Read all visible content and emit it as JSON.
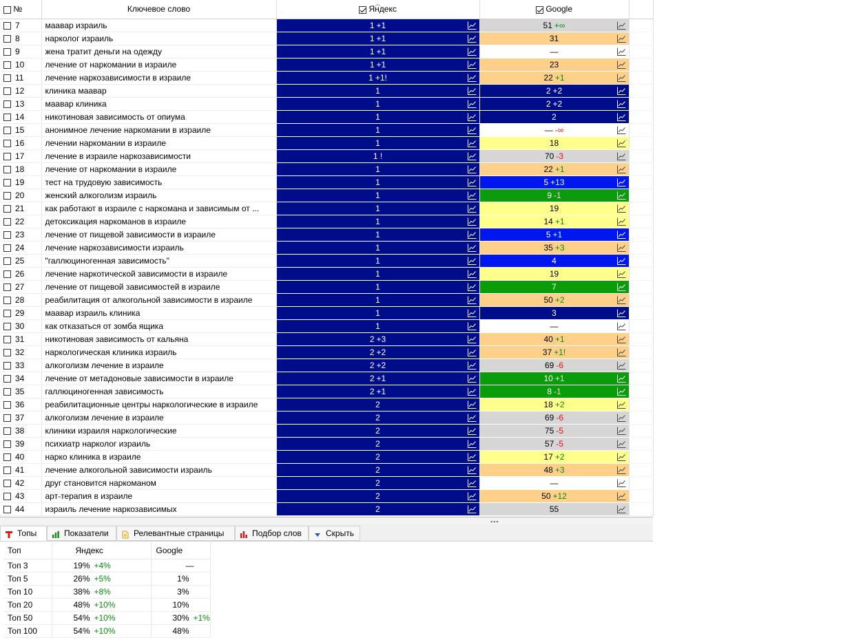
{
  "header": {
    "num_label": "№",
    "keyword_label": "Ключевое слово",
    "yandex_label": "Яндекс",
    "google_label": "Google"
  },
  "colors": {
    "navy": "#000d8a",
    "blue": "#0016ee",
    "green": "#0b9c0b",
    "gray": "#d6d6d6",
    "orange": "#ffd08a",
    "yellow": "#ffff8c",
    "white": "#ffffff"
  },
  "rows": [
    {
      "num": "7",
      "keyword": "маавар израиль",
      "y_val": "1",
      "y_delta": "+1",
      "y_delta_kind": "up",
      "y_color": "navy",
      "g_val": "51",
      "g_delta": "+∞",
      "g_delta_kind": "up",
      "g_color": "gray"
    },
    {
      "num": "8",
      "keyword": "нарколог израиль",
      "y_val": "1",
      "y_delta": "+1",
      "y_delta_kind": "up",
      "y_color": "navy",
      "g_val": "31",
      "g_delta": "",
      "g_delta_kind": "",
      "g_color": "orange"
    },
    {
      "num": "9",
      "keyword": "жена тратит деньги на одежду",
      "y_val": "1",
      "y_delta": "+1",
      "y_delta_kind": "up",
      "y_color": "navy",
      "g_val": "—",
      "g_delta": "",
      "g_delta_kind": "",
      "g_color": "white"
    },
    {
      "num": "10",
      "keyword": "лечение от наркомании в израиле",
      "y_val": "1",
      "y_delta": "+1",
      "y_delta_kind": "up",
      "y_color": "navy",
      "g_val": "23",
      "g_delta": "",
      "g_delta_kind": "",
      "g_color": "orange"
    },
    {
      "num": "11",
      "keyword": "лечение наркозависимости в израиле",
      "y_val": "1",
      "y_delta": "+1!",
      "y_delta_kind": "up",
      "y_color": "navy",
      "g_val": "22",
      "g_delta": "+1",
      "g_delta_kind": "up",
      "g_color": "orange"
    },
    {
      "num": "12",
      "keyword": "клиника маавар",
      "y_val": "1",
      "y_delta": "",
      "y_delta_kind": "",
      "y_color": "navy",
      "g_val": "2",
      "g_delta": "+2",
      "g_delta_kind": "up",
      "g_color": "navy"
    },
    {
      "num": "13",
      "keyword": "маавар клиника",
      "y_val": "1",
      "y_delta": "",
      "y_delta_kind": "",
      "y_color": "navy",
      "g_val": "2",
      "g_delta": "+2",
      "g_delta_kind": "up",
      "g_color": "navy"
    },
    {
      "num": "14",
      "keyword": "никотиновая зависимость от опиума",
      "y_val": "1",
      "y_delta": "",
      "y_delta_kind": "",
      "y_color": "navy",
      "g_val": "2",
      "g_delta": "",
      "g_delta_kind": "",
      "g_color": "navy"
    },
    {
      "num": "15",
      "keyword": "анонимное лечение наркомании в израиле",
      "y_val": "1",
      "y_delta": "",
      "y_delta_kind": "",
      "y_color": "navy",
      "g_val": "—",
      "g_delta": "-∞",
      "g_delta_kind": "down",
      "g_color": "white"
    },
    {
      "num": "16",
      "keyword": "лечении наркомании в израиле",
      "y_val": "1",
      "y_delta": "",
      "y_delta_kind": "",
      "y_color": "navy",
      "g_val": "18",
      "g_delta": "",
      "g_delta_kind": "",
      "g_color": "yellow"
    },
    {
      "num": "17",
      "keyword": "лечение в израиле наркозависимости",
      "y_val": "1 !",
      "y_delta": "",
      "y_delta_kind": "",
      "y_color": "navy",
      "g_val": "70",
      "g_delta": "-3",
      "g_delta_kind": "down",
      "g_color": "gray"
    },
    {
      "num": "18",
      "keyword": "лечение от наркомании в израиле",
      "y_val": "1",
      "y_delta": "",
      "y_delta_kind": "",
      "y_color": "navy",
      "g_val": "22",
      "g_delta": "+1",
      "g_delta_kind": "up",
      "g_color": "orange"
    },
    {
      "num": "19",
      "keyword": "тест на трудовую зависимость",
      "y_val": "1",
      "y_delta": "",
      "y_delta_kind": "",
      "y_color": "navy",
      "g_val": "5",
      "g_delta": "+13",
      "g_delta_kind": "up",
      "g_color": "blue"
    },
    {
      "num": "20",
      "keyword": "женский алкоголизм израиль",
      "y_val": "1",
      "y_delta": "",
      "y_delta_kind": "",
      "y_color": "navy",
      "g_val": "9",
      "g_delta": "-1",
      "g_delta_kind": "down",
      "g_color": "green"
    },
    {
      "num": "21",
      "keyword": "как работают в израиле с наркомана и зависимым от ...",
      "y_val": "1",
      "y_delta": "",
      "y_delta_kind": "",
      "y_color": "navy",
      "g_val": "19",
      "g_delta": "",
      "g_delta_kind": "",
      "g_color": "yellow"
    },
    {
      "num": "22",
      "keyword": "детоксикация наркоманов в израиле",
      "y_val": "1",
      "y_delta": "",
      "y_delta_kind": "",
      "y_color": "navy",
      "g_val": "14",
      "g_delta": "+1",
      "g_delta_kind": "up",
      "g_color": "yellow"
    },
    {
      "num": "23",
      "keyword": "лечение от пищевой зависимости в израиле",
      "y_val": "1",
      "y_delta": "",
      "y_delta_kind": "",
      "y_color": "navy",
      "g_val": "5",
      "g_delta": "+1",
      "g_delta_kind": "up",
      "g_color": "blue"
    },
    {
      "num": "24",
      "keyword": "лечение наркозависимости израиль",
      "y_val": "1",
      "y_delta": "",
      "y_delta_kind": "",
      "y_color": "navy",
      "g_val": "35",
      "g_delta": "+3",
      "g_delta_kind": "up",
      "g_color": "orange"
    },
    {
      "num": "25",
      "keyword": "\"галлюциногенная зависимость\"",
      "y_val": "1",
      "y_delta": "",
      "y_delta_kind": "",
      "y_color": "navy",
      "g_val": "4",
      "g_delta": "",
      "g_delta_kind": "",
      "g_color": "blue"
    },
    {
      "num": "26",
      "keyword": "лечение наркотической зависимости в израиле",
      "y_val": "1",
      "y_delta": "",
      "y_delta_kind": "",
      "y_color": "navy",
      "g_val": "19",
      "g_delta": "",
      "g_delta_kind": "",
      "g_color": "yellow"
    },
    {
      "num": "27",
      "keyword": "лечение от пищевой зависимостей в израиле",
      "y_val": "1",
      "y_delta": "",
      "y_delta_kind": "",
      "y_color": "navy",
      "g_val": "7",
      "g_delta": "",
      "g_delta_kind": "",
      "g_color": "green"
    },
    {
      "num": "28",
      "keyword": "реабилитация от алкогольной зависимости в израиле",
      "y_val": "1",
      "y_delta": "",
      "y_delta_kind": "",
      "y_color": "navy",
      "g_val": "50",
      "g_delta": "+2",
      "g_delta_kind": "up",
      "g_color": "orange"
    },
    {
      "num": "29",
      "keyword": "маавар израиль клиника",
      "y_val": "1",
      "y_delta": "",
      "y_delta_kind": "",
      "y_color": "navy",
      "g_val": "3",
      "g_delta": "",
      "g_delta_kind": "",
      "g_color": "navy"
    },
    {
      "num": "30",
      "keyword": "как отказаться от зомба ящика",
      "y_val": "1",
      "y_delta": "",
      "y_delta_kind": "",
      "y_color": "navy",
      "g_val": "—",
      "g_delta": "",
      "g_delta_kind": "",
      "g_color": "white"
    },
    {
      "num": "31",
      "keyword": "никотиновая зависимость от кальяна",
      "y_val": "2",
      "y_delta": "+3",
      "y_delta_kind": "up",
      "y_color": "navy",
      "g_val": "40",
      "g_delta": "+1",
      "g_delta_kind": "up",
      "g_color": "orange"
    },
    {
      "num": "32",
      "keyword": "наркологическая клиника израиль",
      "y_val": "2",
      "y_delta": "+2",
      "y_delta_kind": "up",
      "y_color": "navy",
      "g_val": "37",
      "g_delta": "+1!",
      "g_delta_kind": "up",
      "g_color": "orange"
    },
    {
      "num": "33",
      "keyword": "алкоголизм лечение в израиле",
      "y_val": "2",
      "y_delta": "+2",
      "y_delta_kind": "up",
      "y_color": "navy",
      "g_val": "69",
      "g_delta": "-6",
      "g_delta_kind": "down",
      "g_color": "gray"
    },
    {
      "num": "34",
      "keyword": "лечение от метадоновые зависимости в израиле",
      "y_val": "2",
      "y_delta": "+1",
      "y_delta_kind": "up",
      "y_color": "navy",
      "g_val": "10",
      "g_delta": "+1",
      "g_delta_kind": "up",
      "g_color": "green"
    },
    {
      "num": "35",
      "keyword": "галлюциногенная зависимость",
      "y_val": "2",
      "y_delta": "+1",
      "y_delta_kind": "up",
      "y_color": "navy",
      "g_val": "8",
      "g_delta": "-1",
      "g_delta_kind": "down",
      "g_color": "green"
    },
    {
      "num": "36",
      "keyword": "реабилитационные центры наркологические в израиле",
      "y_val": "2",
      "y_delta": "",
      "y_delta_kind": "",
      "y_color": "navy",
      "g_val": "18",
      "g_delta": "+2",
      "g_delta_kind": "up",
      "g_color": "yellow"
    },
    {
      "num": "37",
      "keyword": "алкоголизм лечение в израиле",
      "y_val": "2",
      "y_delta": "",
      "y_delta_kind": "",
      "y_color": "navy",
      "g_val": "69",
      "g_delta": "-6",
      "g_delta_kind": "down",
      "g_color": "gray"
    },
    {
      "num": "38",
      "keyword": "клиники израиля наркологические",
      "y_val": "2",
      "y_delta": "",
      "y_delta_kind": "",
      "y_color": "navy",
      "g_val": "75",
      "g_delta": "-5",
      "g_delta_kind": "down",
      "g_color": "gray"
    },
    {
      "num": "39",
      "keyword": "психиатр нарколог израиль",
      "y_val": "2",
      "y_delta": "",
      "y_delta_kind": "",
      "y_color": "navy",
      "g_val": "57",
      "g_delta": "-5",
      "g_delta_kind": "down",
      "g_color": "gray"
    },
    {
      "num": "40",
      "keyword": "нарко клиника в израиле",
      "y_val": "2",
      "y_delta": "",
      "y_delta_kind": "",
      "y_color": "navy",
      "g_val": "17",
      "g_delta": "+2",
      "g_delta_kind": "up",
      "g_color": "yellow"
    },
    {
      "num": "41",
      "keyword": "лечение алкогольной зависимости израиль",
      "y_val": "2",
      "y_delta": "",
      "y_delta_kind": "",
      "y_color": "navy",
      "g_val": "48",
      "g_delta": "+3",
      "g_delta_kind": "up",
      "g_color": "orange"
    },
    {
      "num": "42",
      "keyword": "друг становится наркоманом",
      "y_val": "2",
      "y_delta": "",
      "y_delta_kind": "",
      "y_color": "navy",
      "g_val": "—",
      "g_delta": "",
      "g_delta_kind": "",
      "g_color": "white"
    },
    {
      "num": "43",
      "keyword": "арт-терапия в израиле",
      "y_val": "2",
      "y_delta": "",
      "y_delta_kind": "",
      "y_color": "navy",
      "g_val": "50",
      "g_delta": "+12",
      "g_delta_kind": "up",
      "g_color": "orange"
    },
    {
      "num": "44",
      "keyword": "израиль лечение наркозависимых",
      "y_val": "2",
      "y_delta": "",
      "y_delta_kind": "",
      "y_color": "navy",
      "g_val": "55",
      "g_delta": "",
      "g_delta_kind": "",
      "g_color": "gray"
    }
  ],
  "tabs": [
    {
      "label": "Топы",
      "icon": "top-icon",
      "active": true
    },
    {
      "label": "Показатели",
      "icon": "bar-chart-icon",
      "active": false
    },
    {
      "label": "Релевантные страницы",
      "icon": "page-icon",
      "active": false
    },
    {
      "label": "Подбор слов",
      "icon": "words-chart-icon",
      "active": false
    },
    {
      "label": "Скрыть",
      "icon": "triangle-down-icon",
      "active": false
    }
  ],
  "stats": {
    "headers": {
      "label": "Топ",
      "yandex": "Яндекс",
      "google": "Google"
    },
    "rows": [
      {
        "label": "Топ 3",
        "y": "19%",
        "y_d": "+4%",
        "g": "—",
        "g_d": ""
      },
      {
        "label": "Топ 5",
        "y": "26%",
        "y_d": "+5%",
        "g": "1%",
        "g_d": ""
      },
      {
        "label": "Топ 10",
        "y": "38%",
        "y_d": "+8%",
        "g": "3%",
        "g_d": ""
      },
      {
        "label": "Топ 20",
        "y": "48%",
        "y_d": "+10%",
        "g": "10%",
        "g_d": ""
      },
      {
        "label": "Топ 50",
        "y": "54%",
        "y_d": "+10%",
        "g": "30%",
        "g_d": "+1%"
      },
      {
        "label": "Топ 100",
        "y": "54%",
        "y_d": "+10%",
        "g": "48%",
        "g_d": ""
      }
    ]
  }
}
